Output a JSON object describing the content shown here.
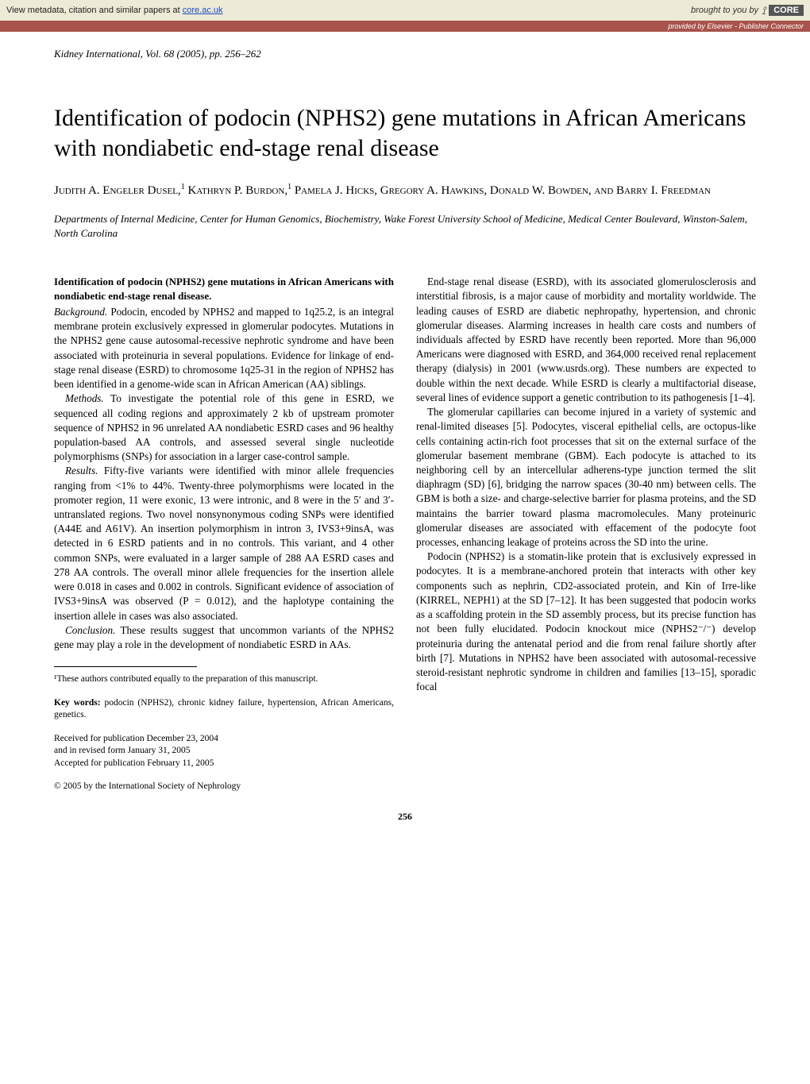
{
  "core_bar": {
    "left_prefix": "View metadata, citation and similar papers at ",
    "link_text": "core.ac.uk",
    "right_prefix": "brought to you by",
    "logo": "CORE"
  },
  "provided_bar": "provided by Elsevier - Publisher Connector",
  "journal_ref": "Kidney International, Vol. 68 (2005), pp. 256–262",
  "title": "Identification of podocin (NPHS2) gene mutations in African Americans with nondiabetic end-stage renal disease",
  "authors_html": "Judith A. Engeler Dusel,<span class='sup'>1</span> Kathryn P. Burdon,<span class='sup'>1</span> Pamela J. Hicks, Gregory A. Hawkins, Donald W. Bowden, and Barry I. Freedman",
  "affiliation": "Departments of Internal Medicine, Center for Human Genomics, Biochemistry, Wake Forest University School of Medicine, Medical Center Boulevard, Winston-Salem, North Carolina",
  "abstract": {
    "title": "Identification of podocin (NPHS2) gene mutations in African Americans with nondiabetic end-stage renal disease.",
    "background_label": "Background.",
    "background": " Podocin, encoded by NPHS2 and mapped to 1q25.2, is an integral membrane protein exclusively expressed in glomerular podocytes. Mutations in the NPHS2 gene cause autosomal-recessive nephrotic syndrome and have been associated with proteinuria in several populations. Evidence for linkage of end-stage renal disease (ESRD) to chromosome 1q25-31 in the region of NPHS2 has been identified in a genome-wide scan in African American (AA) siblings.",
    "methods_label": "Methods.",
    "methods": " To investigate the potential role of this gene in ESRD, we sequenced all coding regions and approximately 2 kb of upstream promoter sequence of NPHS2 in 96 unrelated AA nondiabetic ESRD cases and 96 healthy population-based AA controls, and assessed several single nucleotide polymorphisms (SNPs) for association in a larger case-control sample.",
    "results_label": "Results.",
    "results": " Fifty-five variants were identified with minor allele frequencies ranging from <1% to 44%. Twenty-three polymorphisms were located in the promoter region, 11 were exonic, 13 were intronic, and 8 were in the 5′ and 3′- untranslated regions. Two novel nonsynonymous coding SNPs were identified (A44E and A61V). An insertion polymorphism in intron 3, IVS3+9insA, was detected in 6 ESRD patients and in no controls. This variant, and 4 other common SNPs, were evaluated in a larger sample of 288 AA ESRD cases and 278 AA controls. The overall minor allele frequencies for the insertion allele were 0.018 in cases and 0.002 in controls. Significant evidence of association of IVS3+9insA was observed (P = 0.012), and the haplotype containing the insertion allele in cases was also associated.",
    "conclusion_label": "Conclusion.",
    "conclusion": " These results suggest that uncommon variants of the NPHS2 gene may play a role in the development of nondiabetic ESRD in AAs."
  },
  "footnote": "¹These authors contributed equally to the preparation of this manuscript.",
  "keywords_label": "Key words:",
  "keywords": " podocin (NPHS2), chronic kidney failure, hypertension, African Americans, genetics.",
  "received": {
    "l1": "Received for publication December 23, 2004",
    "l2": "and in revised form January 31, 2005",
    "l3": "Accepted for publication February 11, 2005"
  },
  "copyright": "© 2005 by the International Society of Nephrology",
  "body": {
    "p1": "End-stage renal disease (ESRD), with its associated glomerulosclerosis and interstitial fibrosis, is a major cause of morbidity and mortality worldwide. The leading causes of ESRD are diabetic nephropathy, hypertension, and chronic glomerular diseases. Alarming increases in health care costs and numbers of individuals affected by ESRD have recently been reported. More than 96,000 Americans were diagnosed with ESRD, and 364,000 received renal replacement therapy (dialysis) in 2001 (www.usrds.org). These numbers are expected to double within the next decade. While ESRD is clearly a multifactorial disease, several lines of evidence support a genetic contribution to its pathogenesis [1–4].",
    "p2": "The glomerular capillaries can become injured in a variety of systemic and renal-limited diseases [5]. Podocytes, visceral epithelial cells, are octopus-like cells containing actin-rich foot processes that sit on the external surface of the glomerular basement membrane (GBM). Each podocyte is attached to its neighboring cell by an intercellular adherens-type junction termed the slit diaphragm (SD) [6], bridging the narrow spaces (30-40 nm) between cells. The GBM is both a size- and charge-selective barrier for plasma proteins, and the SD maintains the barrier toward plasma macromolecules. Many proteinuric glomerular diseases are associated with effacement of the podocyte foot processes, enhancing leakage of proteins across the SD into the urine.",
    "p3": "Podocin (NPHS2) is a stomatin-like protein that is exclusively expressed in podocytes. It is a membrane-anchored protein that interacts with other key components such as nephrin, CD2-associated protein, and Kin of Irre-like (KIRREL, NEPH1) at the SD [7–12]. It has been suggested that podocin works as a scaffolding protein in the SD assembly process, but its precise function has not been fully elucidated. Podocin knockout mice (NPHS2⁻/⁻) develop proteinuria during the antenatal period and die from renal failure shortly after birth [7]. Mutations in NPHS2 have been associated with autosomal-recessive steroid-resistant nephrotic syndrome in children and families [13–15], sporadic focal"
  },
  "page_number": "256"
}
